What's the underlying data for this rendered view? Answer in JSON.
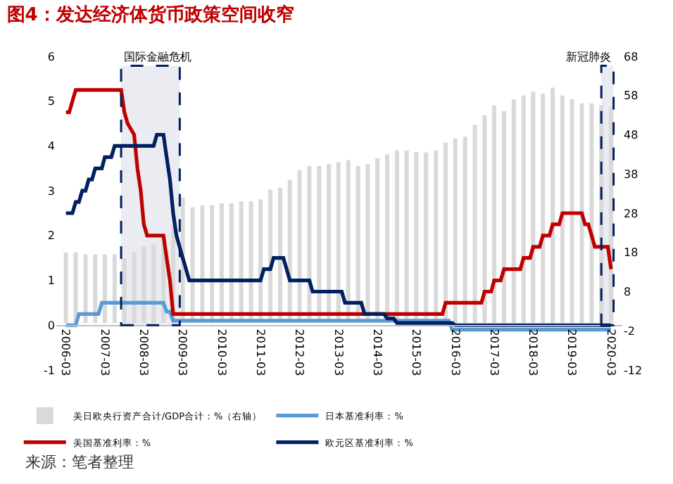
{
  "chart_data": {
    "type": "line",
    "title": "图4：发达经济体货币政策空间收窄",
    "xlim": [
      "2005-12-01",
      "2020-06-15"
    ],
    "xticks": [
      "2006-03",
      "2007-03",
      "2008-03",
      "2009-03",
      "2010-03",
      "2011-03",
      "2012-03",
      "2013-03",
      "2014-03",
      "2015-03",
      "2016-03",
      "2017-03",
      "2018-03",
      "2019-03",
      "2020-03"
    ],
    "ylim": [
      -1,
      6
    ],
    "yticks": [
      -1,
      0,
      1,
      2,
      3,
      4,
      5,
      6
    ],
    "y2lim": [
      -12,
      68
    ],
    "y2ticks": [
      -12,
      -2,
      8,
      18,
      28,
      38,
      48,
      58,
      68
    ],
    "grid": false,
    "legend": "bottom",
    "marker": "none",
    "line_style": "solid",
    "bands": [
      {
        "axis": "x",
        "from": "2007-08",
        "to": "2009-02",
        "label": "国际金融危机",
        "color": "#002060"
      },
      {
        "axis": "x",
        "from": "2019-12",
        "to": "2020-03-25",
        "label": "新冠肺炎",
        "color": "#002060"
      }
    ],
    "annotations": [
      "来源：笔者整理"
    ],
    "series": [
      {
        "name": "美日欧央行资产合计/GDP合计：%（右轴）",
        "type": "bar",
        "axis": "y2",
        "color": "#d9d9d9",
        "x": [
          "2006-03",
          "2006-06",
          "2006-09",
          "2006-12",
          "2007-03",
          "2007-06",
          "2007-09",
          "2007-12",
          "2008-03",
          "2008-06",
          "2008-09",
          "2008-12",
          "2009-03",
          "2009-06",
          "2009-09",
          "2009-12",
          "2010-03",
          "2010-06",
          "2010-09",
          "2010-12",
          "2011-03",
          "2011-06",
          "2011-09",
          "2011-12",
          "2012-03",
          "2012-06",
          "2012-09",
          "2012-12",
          "2013-03",
          "2013-06",
          "2013-09",
          "2013-12",
          "2014-03",
          "2014-06",
          "2014-09",
          "2014-12",
          "2015-03",
          "2015-06",
          "2015-09",
          "2015-12",
          "2016-03",
          "2016-06",
          "2016-09",
          "2016-12",
          "2017-03",
          "2017-06",
          "2017-09",
          "2017-12",
          "2018-03",
          "2018-06",
          "2018-09",
          "2018-12",
          "2019-03",
          "2019-06",
          "2019-09",
          "2019-12",
          "2020-03"
        ],
        "values": [
          18,
          18,
          17.5,
          17.5,
          17.5,
          17.5,
          16.5,
          18,
          19.5,
          20,
          21,
          25,
          32,
          29.5,
          30,
          30,
          30.5,
          30.5,
          31,
          31,
          31.5,
          34,
          34.5,
          36.5,
          39,
          40,
          40,
          40.5,
          41,
          41.5,
          40,
          40.5,
          42,
          43,
          44,
          44,
          43.5,
          43.5,
          44,
          46,
          47,
          47.5,
          50.5,
          53,
          55.5,
          54,
          57,
          58,
          59,
          58.5,
          60,
          58,
          57,
          56,
          56,
          55.5,
          55
        ]
      },
      {
        "name": "日本基准利率：%",
        "color": "#5b9bd5",
        "x": [
          "2006-03",
          "2006-06",
          "2006-07",
          "2007-01",
          "2007-02",
          "2008-09",
          "2008-10",
          "2008-11",
          "2008-12",
          "2016-01",
          "2016-02",
          "2020-03"
        ],
        "values": [
          0,
          0,
          0.25,
          0.25,
          0.5,
          0.5,
          0.3,
          0.3,
          0.1,
          0.1,
          -0.1,
          -0.1
        ]
      },
      {
        "name": "美国基准利率：%",
        "color": "#c00000",
        "x": [
          "2006-03",
          "2006-04",
          "2006-05",
          "2006-06",
          "2007-08",
          "2007-09",
          "2007-10",
          "2007-12",
          "2008-01",
          "2008-02",
          "2008-03",
          "2008-04",
          "2008-09",
          "2008-10",
          "2008-11",
          "2008-12",
          "2015-11",
          "2015-12",
          "2016-11",
          "2016-12",
          "2017-02",
          "2017-03",
          "2017-05",
          "2017-06",
          "2017-11",
          "2017-12",
          "2018-02",
          "2018-03",
          "2018-05",
          "2018-06",
          "2018-08",
          "2018-09",
          "2018-11",
          "2018-12",
          "2019-06",
          "2019-07",
          "2019-08",
          "2019-09",
          "2019-10",
          "2020-02",
          "2020-03"
        ],
        "values": [
          4.75,
          4.75,
          5,
          5.25,
          5.25,
          4.75,
          4.5,
          4.25,
          3.5,
          3,
          2.25,
          2,
          2,
          1.5,
          1,
          0.25,
          0.25,
          0.5,
          0.5,
          0.75,
          0.75,
          1,
          1,
          1.25,
          1.25,
          1.5,
          1.5,
          1.75,
          1.75,
          2,
          2,
          2.25,
          2.25,
          2.5,
          2.5,
          2.25,
          2.25,
          2,
          1.75,
          1.75,
          1.25
        ]
      },
      {
        "name": "欧元区基准利率：%",
        "color": "#002060",
        "x": [
          "2006-03",
          "2006-05",
          "2006-06",
          "2006-07",
          "2006-08",
          "2006-09",
          "2006-10",
          "2006-11",
          "2006-12",
          "2007-02",
          "2007-03",
          "2007-05",
          "2007-06",
          "2008-06",
          "2008-07",
          "2008-09",
          "2008-10",
          "2008-11",
          "2008-12",
          "2009-01",
          "2009-03",
          "2009-04",
          "2009-05",
          "2011-03",
          "2011-04",
          "2011-06",
          "2011-07",
          "2011-10",
          "2011-11",
          "2011-12",
          "2012-06",
          "2012-07",
          "2013-04",
          "2013-05",
          "2013-10",
          "2013-11",
          "2014-05",
          "2014-06",
          "2014-08",
          "2014-09",
          "2016-02",
          "2016-03",
          "2020-03"
        ],
        "values": [
          2.5,
          2.5,
          2.75,
          2.75,
          3,
          3,
          3.25,
          3.25,
          3.5,
          3.5,
          3.75,
          3.75,
          4,
          4,
          4.25,
          4.25,
          3.75,
          3.25,
          2.5,
          2,
          1.5,
          1.25,
          1,
          1,
          1.25,
          1.25,
          1.5,
          1.5,
          1.25,
          1,
          1,
          0.75,
          0.75,
          0.5,
          0.5,
          0.25,
          0.25,
          0.15,
          0.15,
          0.05,
          0.05,
          0,
          0
        ]
      }
    ]
  }
}
